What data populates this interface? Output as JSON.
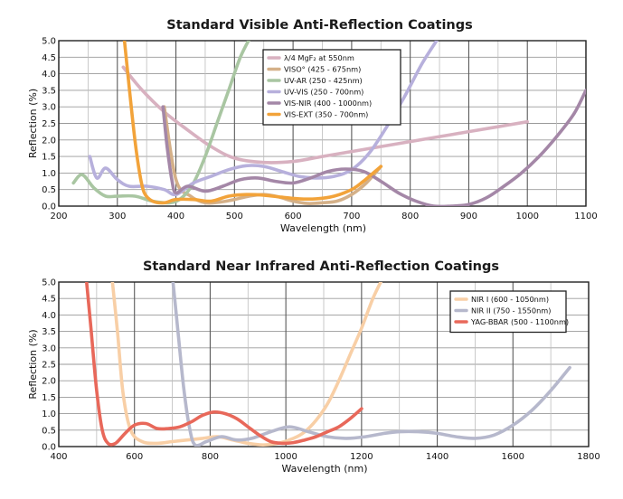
{
  "chart_data": [
    {
      "type": "line",
      "title": "Standard Visible Anti-Reflection Coatings",
      "xlabel": "Wavelength (nm)",
      "ylabel": "Reflection (%)",
      "xlim": [
        200,
        1100
      ],
      "ylim": [
        0,
        5
      ],
      "xticks": [
        200,
        300,
        400,
        500,
        600,
        700,
        800,
        900,
        1000,
        1100
      ],
      "yticks": [
        0,
        0.5,
        1.0,
        1.5,
        2.0,
        2.5,
        3.0,
        3.5,
        4.0,
        4.5,
        5.0
      ],
      "grid": true,
      "legend_position": "top-center",
      "series": [
        {
          "name": "λ/4 MgF₂ at 550nm",
          "color": "#d8b1c0",
          "x": [
            310,
            340,
            380,
            420,
            460,
            500,
            550,
            600,
            650,
            700,
            750,
            800,
            850,
            900,
            950,
            1000
          ],
          "y": [
            4.2,
            3.55,
            2.85,
            2.3,
            1.8,
            1.45,
            1.32,
            1.35,
            1.5,
            1.65,
            1.8,
            1.95,
            2.1,
            2.25,
            2.4,
            2.55
          ]
        },
        {
          "name": "VISO° (425 - 675nm)",
          "color": "#d4b088",
          "x": [
            380,
            400,
            425,
            450,
            475,
            500,
            525,
            550,
            575,
            600,
            625,
            650,
            675,
            700,
            725,
            750
          ],
          "y": [
            3.0,
            0.8,
            0.3,
            0.1,
            0.12,
            0.2,
            0.3,
            0.35,
            0.28,
            0.15,
            0.08,
            0.1,
            0.15,
            0.35,
            0.7,
            1.2
          ]
        },
        {
          "name": "UV-AR (250 - 425nm)",
          "color": "#a9c6a2",
          "x": [
            225,
            240,
            260,
            280,
            300,
            330,
            360,
            390,
            410,
            430,
            450,
            470,
            490,
            510,
            530
          ],
          "y": [
            0.7,
            0.95,
            0.55,
            0.3,
            0.3,
            0.3,
            0.15,
            0.1,
            0.25,
            0.7,
            1.5,
            2.5,
            3.5,
            4.5,
            5.2
          ]
        },
        {
          "name": "UV-VIS (250 - 700nm)",
          "color": "#b7b0dc",
          "x": [
            253,
            265,
            280,
            300,
            320,
            350,
            380,
            400,
            430,
            460,
            490,
            520,
            550,
            580,
            610,
            640,
            670,
            700,
            730,
            760,
            790,
            820,
            845
          ],
          "y": [
            1.5,
            0.85,
            1.15,
            0.8,
            0.6,
            0.6,
            0.5,
            0.35,
            0.7,
            0.9,
            1.1,
            1.22,
            1.2,
            1.05,
            0.9,
            0.85,
            0.9,
            1.1,
            1.6,
            2.4,
            3.3,
            4.3,
            5.0
          ]
        },
        {
          "name": "VIS-NIR (400 - 1000nm)",
          "color": "#a487a7",
          "x": [
            378,
            385,
            393,
            400,
            420,
            450,
            480,
            510,
            540,
            570,
            600,
            630,
            660,
            690,
            720,
            750,
            780,
            810,
            840,
            870,
            900,
            930,
            960,
            990,
            1020,
            1050,
            1080,
            1100
          ],
          "y": [
            3.0,
            1.8,
            0.8,
            0.4,
            0.6,
            0.45,
            0.6,
            0.8,
            0.85,
            0.75,
            0.7,
            0.85,
            1.05,
            1.12,
            1.05,
            0.75,
            0.4,
            0.15,
            0.0,
            0.0,
            0.05,
            0.25,
            0.6,
            1.0,
            1.5,
            2.1,
            2.8,
            3.5
          ]
        },
        {
          "name": "VIS-EXT (350 - 700nm)",
          "color": "#f2a33a",
          "x": [
            311,
            315,
            322,
            330,
            338,
            346,
            360,
            380,
            400,
            430,
            460,
            490,
            520,
            550,
            580,
            610,
            640,
            670,
            700,
            720,
            750
          ],
          "y": [
            5.2,
            4.5,
            3.3,
            2.0,
            1.0,
            0.4,
            0.15,
            0.1,
            0.2,
            0.2,
            0.15,
            0.3,
            0.35,
            0.33,
            0.27,
            0.22,
            0.22,
            0.3,
            0.5,
            0.75,
            1.2
          ]
        }
      ]
    },
    {
      "type": "line",
      "title": "Standard Near Infrared Anti-Reflection Coatings",
      "xlabel": "Wavelength (nm)",
      "ylabel": "Reflection (%)",
      "xlim": [
        400,
        1800
      ],
      "ylim": [
        0,
        5
      ],
      "xticks": [
        400,
        600,
        800,
        1000,
        1200,
        1400,
        1600,
        1800
      ],
      "yticks": [
        0,
        0.5,
        1.0,
        1.5,
        2.0,
        2.5,
        3.0,
        3.5,
        4.0,
        4.5,
        5.0
      ],
      "grid": true,
      "legend_position": "top-right",
      "series": [
        {
          "name": "NIR I (600 - 1050nm)",
          "color": "#f8cfa6",
          "x": [
            540,
            555,
            570,
            590,
            620,
            660,
            700,
            740,
            780,
            820,
            860,
            900,
            940,
            980,
            1020,
            1050,
            1080,
            1110,
            1140,
            1170,
            1200,
            1230,
            1255
          ],
          "y": [
            5.2,
            3.5,
            1.6,
            0.5,
            0.15,
            0.1,
            0.15,
            0.2,
            0.25,
            0.3,
            0.2,
            0.1,
            0.05,
            0.1,
            0.25,
            0.45,
            0.8,
            1.3,
            2.0,
            2.8,
            3.6,
            4.5,
            5.1
          ]
        },
        {
          "name": "NIR II (750 - 1550nm)",
          "color": "#b6b8cc",
          "x": [
            700,
            715,
            730,
            745,
            760,
            790,
            830,
            870,
            910,
            960,
            1010,
            1060,
            1110,
            1160,
            1210,
            1260,
            1300,
            1350,
            1400,
            1450,
            1500,
            1550,
            1600,
            1650,
            1700,
            1750
          ],
          "y": [
            5.2,
            3.5,
            1.8,
            0.6,
            0.05,
            0.15,
            0.3,
            0.2,
            0.25,
            0.45,
            0.6,
            0.45,
            0.3,
            0.25,
            0.3,
            0.4,
            0.45,
            0.45,
            0.4,
            0.3,
            0.25,
            0.35,
            0.65,
            1.1,
            1.7,
            2.4
          ]
        },
        {
          "name": "YAG-BBAR (500 - 1100nm)",
          "color": "#e8685a",
          "x": [
            472,
            485,
            500,
            515,
            530,
            550,
            575,
            600,
            630,
            660,
            690,
            720,
            750,
            780,
            810,
            840,
            870,
            900,
            930,
            960,
            990,
            1020,
            1050,
            1080,
            1110,
            1140,
            1170,
            1200
          ],
          "y": [
            5.2,
            3.6,
            1.7,
            0.5,
            0.1,
            0.1,
            0.4,
            0.65,
            0.7,
            0.55,
            0.55,
            0.6,
            0.75,
            0.95,
            1.05,
            1.0,
            0.85,
            0.6,
            0.35,
            0.15,
            0.1,
            0.12,
            0.2,
            0.3,
            0.45,
            0.6,
            0.85,
            1.15
          ]
        }
      ]
    }
  ]
}
